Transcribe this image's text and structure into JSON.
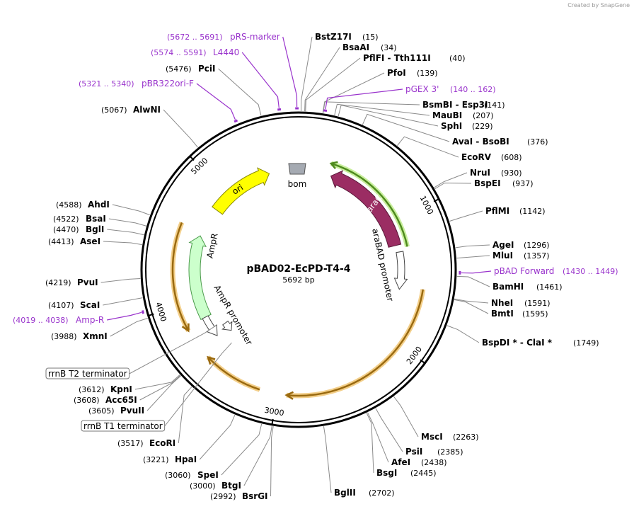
{
  "credit": "Created by SnapGene",
  "map": {
    "name": "pBAD02-EcPD-T4-4",
    "length": "5692 bp",
    "ruler": [
      "1000",
      "2000",
      "3000",
      "4000",
      "5000"
    ]
  },
  "features": [
    {
      "label": "ori"
    },
    {
      "label": "araC"
    },
    {
      "label": "AmpR"
    },
    {
      "label": "bom"
    },
    {
      "label": "araBAD promoter"
    },
    {
      "label": "AmpR promoter"
    }
  ],
  "primers": [
    {
      "name": "pRS-marker",
      "range": "(5672 .. 5691)"
    },
    {
      "name": "L4440",
      "range": "(5574 .. 5591)"
    },
    {
      "name": "pBR322ori-F",
      "range": "(5321 .. 5340)"
    },
    {
      "name": "pGEX 3'",
      "range": "(140 .. 162)"
    },
    {
      "name": "pBAD Forward",
      "range": "(1430 .. 1449)"
    },
    {
      "name": "Amp-R",
      "range": "(4019 .. 4038)"
    }
  ],
  "terminators": [
    "rrnB T2 terminator",
    "rrnB T1 terminator"
  ],
  "sites": [
    {
      "name": "BstZ17I",
      "position": "(15)"
    },
    {
      "name": "BsaAI",
      "position": "(34)"
    },
    {
      "name": "PflFI  - Tth111I",
      "position": "(40)"
    },
    {
      "name": "PfoI",
      "position": "(139)"
    },
    {
      "name": "BsmBI  - Esp3I",
      "position": "(141)"
    },
    {
      "name": "MauBI",
      "position": "(207)"
    },
    {
      "name": "SphI",
      "position": "(229)"
    },
    {
      "name": "AvaI  - BsoBI",
      "position": "(376)"
    },
    {
      "name": "EcoRV",
      "position": "(608)"
    },
    {
      "name": "NruI",
      "position": "(930)"
    },
    {
      "name": "BspEI",
      "position": "(937)"
    },
    {
      "name": "PflMI",
      "position": "(1142)"
    },
    {
      "name": "AgeI",
      "position": "(1296)"
    },
    {
      "name": "MluI",
      "position": "(1357)"
    },
    {
      "name": "BamHI",
      "position": "(1461)"
    },
    {
      "name": "NheI",
      "position": "(1591)"
    },
    {
      "name": "BmtI",
      "position": "(1595)"
    },
    {
      "name": "BspDI *  - ClaI *",
      "position": "(1749)"
    },
    {
      "name": "MscI",
      "position": "(2263)"
    },
    {
      "name": "PsiI",
      "position": "(2385)"
    },
    {
      "name": "AfeI",
      "position": "(2438)"
    },
    {
      "name": "BsgI",
      "position": "(2445)"
    },
    {
      "name": "BglII",
      "position": "(2702)"
    },
    {
      "name": "BsrGI",
      "position": "(2992)"
    },
    {
      "name": "BtgI",
      "position": "(3000)"
    },
    {
      "name": "SpeI",
      "position": "(3060)"
    },
    {
      "name": "HpaI",
      "position": "(3221)"
    },
    {
      "name": "EcoRI",
      "position": "(3517)"
    },
    {
      "name": "PvuII",
      "position": "(3605)"
    },
    {
      "name": "Acc65I",
      "position": "(3608)"
    },
    {
      "name": "KpnI",
      "position": "(3612)"
    },
    {
      "name": "XmnI",
      "position": "(3988)"
    },
    {
      "name": "ScaI",
      "position": "(4107)"
    },
    {
      "name": "PvuI",
      "position": "(4219)"
    },
    {
      "name": "AseI",
      "position": "(4413)"
    },
    {
      "name": "BglI",
      "position": "(4470)"
    },
    {
      "name": "BsaI",
      "position": "(4522)"
    },
    {
      "name": "AhdI",
      "position": "(4588)"
    },
    {
      "name": "AlwNI",
      "position": "(5067)"
    },
    {
      "name": "PciI",
      "position": "(5476)"
    }
  ]
}
